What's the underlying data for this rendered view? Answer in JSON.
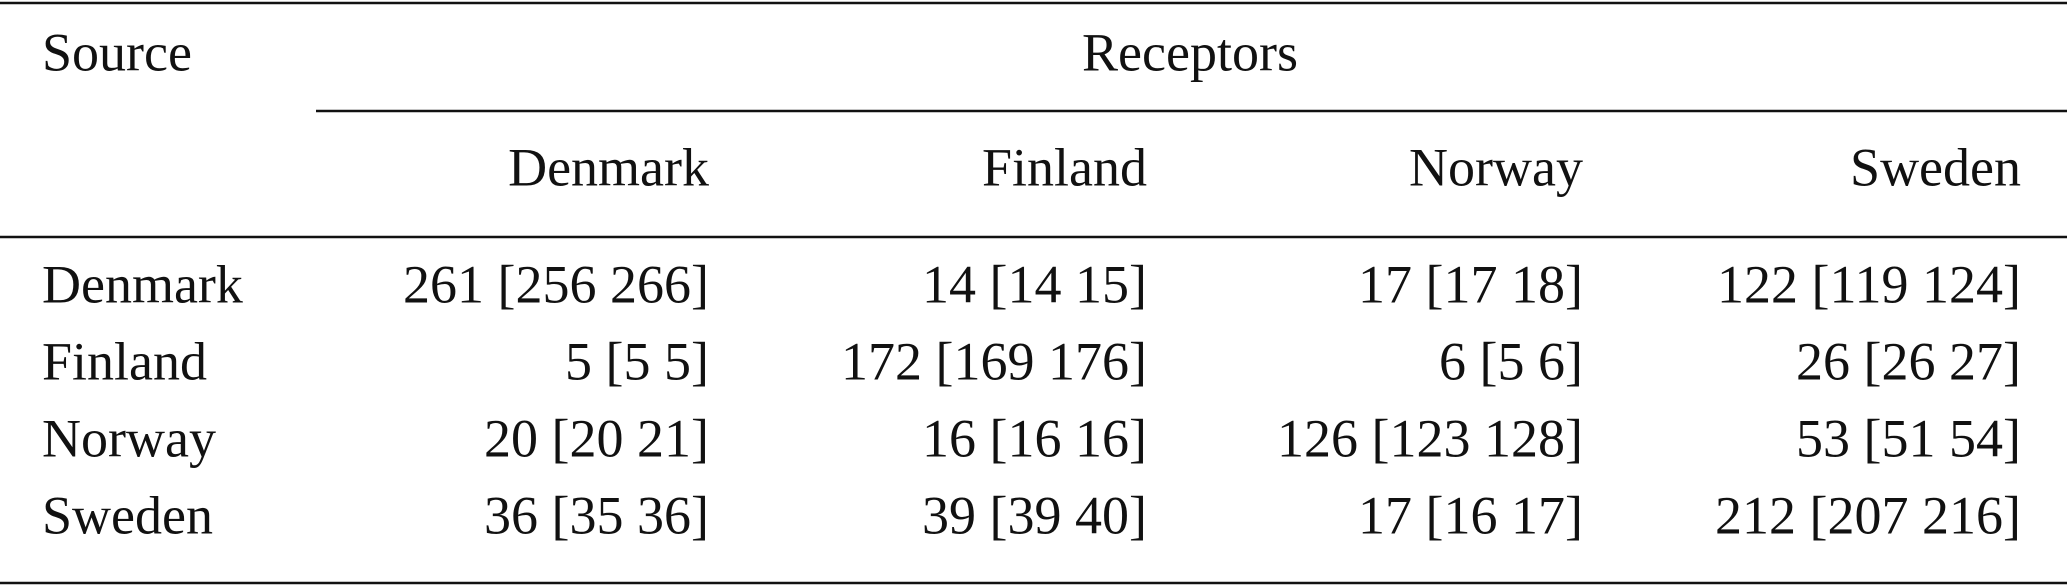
{
  "table": {
    "header": {
      "source": "Source",
      "group": "Receptors"
    },
    "columns": [
      "Denmark",
      "Finland",
      "Norway",
      "Sweden"
    ],
    "rows": [
      [
        "Denmark",
        "261 [256 266]",
        "14 [14 15]",
        "17 [17 18]",
        "122 [119 124]"
      ],
      [
        "Finland",
        "5 [5 5]",
        "172 [169 176]",
        "6 [5 6]",
        "26 [26 27]"
      ],
      [
        "Norway",
        "20 [20 21]",
        "16 [16 16]",
        "126 [123 128]",
        "53 [51 54]"
      ],
      [
        "Sweden",
        "36 [35 36]",
        "39 [39 40]",
        "17 [16 17]",
        "212 [207 216]"
      ]
    ]
  }
}
